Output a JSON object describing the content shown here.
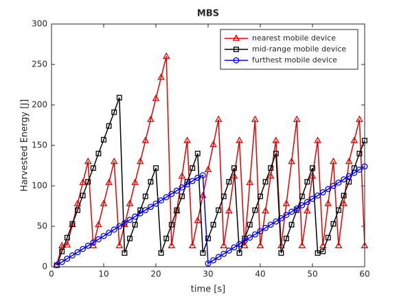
{
  "chart_data": {
    "type": "line",
    "title": "MBS",
    "xlabel": "time [s]",
    "ylabel": "Harvested Energy [J]",
    "xlim": [
      0,
      60
    ],
    "xticks": [
      0,
      10,
      20,
      30,
      40,
      50,
      60
    ],
    "ylim": [
      0,
      300
    ],
    "yticks": [
      0,
      50,
      100,
      150,
      200,
      250,
      300
    ],
    "grid": false,
    "legend": "top-right",
    "x": [
      1,
      2,
      3,
      4,
      5,
      6,
      7,
      8,
      9,
      10,
      11,
      12,
      13,
      14,
      15,
      16,
      17,
      18,
      19,
      20,
      21,
      22,
      23,
      24,
      25,
      26,
      27,
      28,
      29,
      30,
      31,
      32,
      33,
      34,
      35,
      36,
      37,
      38,
      39,
      40,
      41,
      42,
      43,
      44,
      45,
      46,
      47,
      48,
      49,
      50,
      51,
      52,
      53,
      54,
      55,
      56,
      57,
      58,
      59,
      60
    ],
    "series": [
      {
        "name": "nearest mobile device",
        "color": "#e00000",
        "marker": "triangle",
        "values": [
          2,
          26,
          27,
          52,
          78,
          104,
          130,
          26,
          52,
          78,
          104,
          130,
          26,
          52,
          78,
          104,
          130,
          156,
          182,
          208,
          234,
          260,
          26,
          69,
          112,
          156,
          26,
          57,
          88,
          120,
          151,
          182,
          26,
          69,
          112,
          156,
          26,
          104,
          182,
          26,
          69,
          112,
          156,
          26,
          78,
          130,
          182,
          26,
          69,
          112,
          156,
          26,
          78,
          130,
          26,
          78,
          130,
          156,
          182,
          26
        ]
      },
      {
        "name": "mid-range mobile device",
        "color": "#000000",
        "marker": "square",
        "values": [
          2,
          19,
          36,
          53,
          70,
          88,
          105,
          122,
          140,
          157,
          174,
          191,
          209,
          17,
          35,
          52,
          70,
          87,
          105,
          122,
          17,
          35,
          52,
          70,
          87,
          105,
          122,
          140,
          17,
          35,
          52,
          70,
          87,
          105,
          122,
          17,
          35,
          52,
          70,
          87,
          105,
          122,
          140,
          17,
          35,
          52,
          70,
          87,
          105,
          122,
          17,
          19,
          36,
          53,
          70,
          88,
          105,
          122,
          140,
          156
        ]
      },
      {
        "name": "furthest mobile device",
        "color": "#0000e0",
        "marker": "circle",
        "values": [
          2,
          6,
          10,
          14,
          18,
          22,
          26,
          30,
          34,
          38,
          42,
          46,
          50,
          54,
          58,
          62,
          66,
          70,
          74,
          78,
          82,
          86,
          90,
          94,
          98,
          102,
          106,
          110,
          113,
          4,
          8,
          12,
          16,
          20,
          24,
          28,
          32,
          36,
          40,
          44,
          48,
          52,
          56,
          60,
          64,
          68,
          72,
          76,
          80,
          84,
          88,
          92,
          96,
          100,
          104,
          108,
          112,
          116,
          120,
          124
        ]
      }
    ]
  }
}
